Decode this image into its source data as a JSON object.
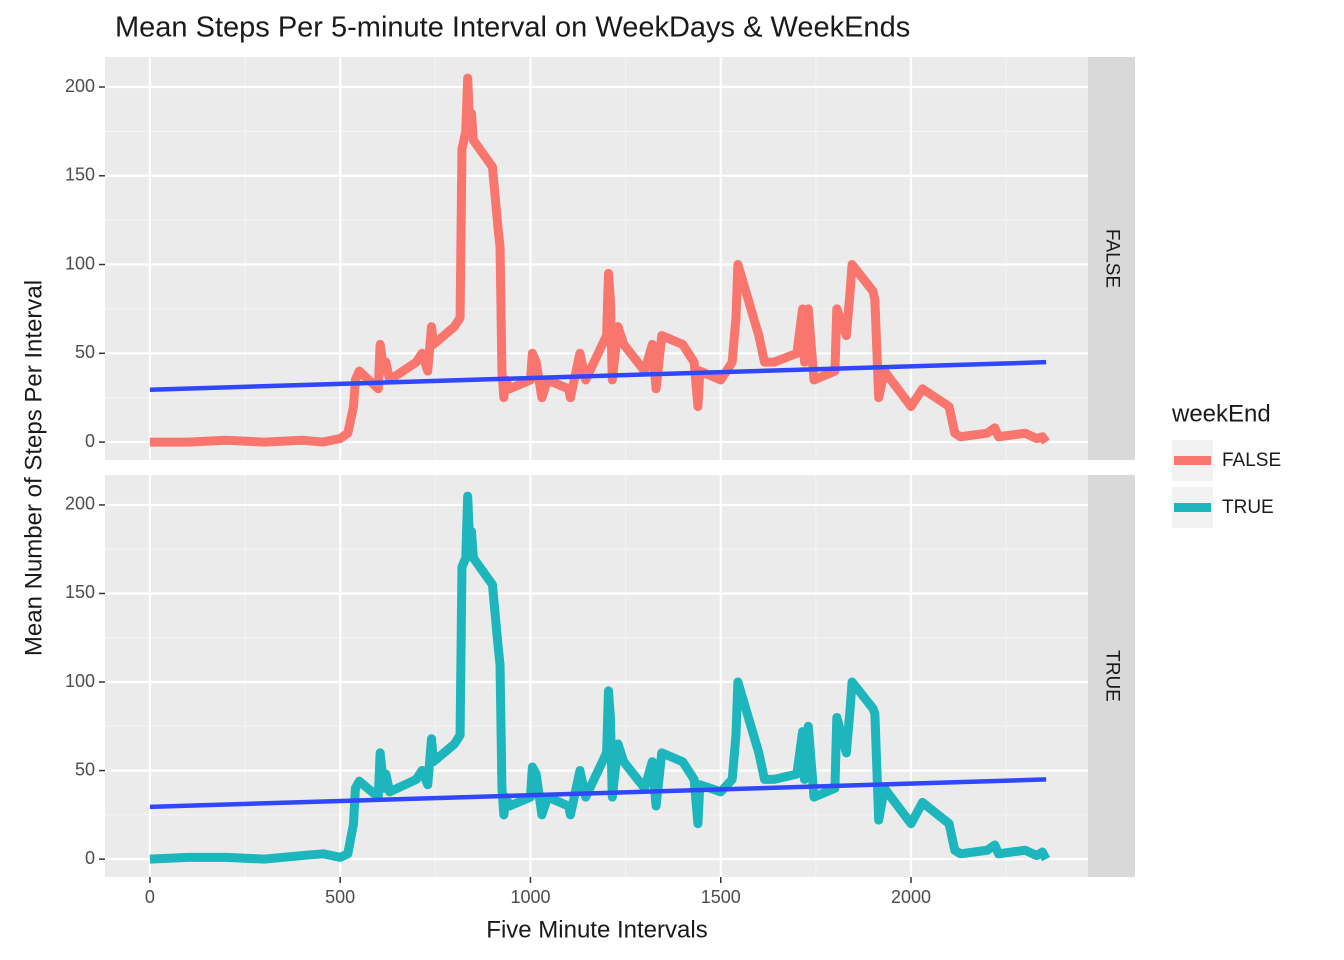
{
  "title": "Mean Steps Per 5-minute Interval on WeekDays & WeekEnds",
  "x_label": "Five Minute Intervals",
  "y_label": "Mean Number of Steps Per Interval",
  "legend_title": "weekEnd",
  "chart_data": [
    {
      "type": "line",
      "facet_label": "FALSE",
      "x": [
        0,
        100,
        200,
        300,
        400,
        455,
        500,
        520,
        535,
        540,
        550,
        600,
        605,
        615,
        620,
        630,
        700,
        715,
        730,
        740,
        745,
        800,
        815,
        820,
        830,
        835,
        840,
        845,
        850,
        900,
        915,
        920,
        925,
        930,
        935,
        945,
        1000,
        1005,
        1015,
        1030,
        1045,
        1100,
        1105,
        1130,
        1145,
        1200,
        1205,
        1210,
        1215,
        1230,
        1245,
        1300,
        1320,
        1330,
        1345,
        1400,
        1430,
        1440,
        1445,
        1500,
        1530,
        1540,
        1545,
        1600,
        1610,
        1615,
        1640,
        1700,
        1715,
        1720,
        1730,
        1745,
        1800,
        1805,
        1830,
        1840,
        1845,
        1900,
        1905,
        1915,
        1930,
        2000,
        2030,
        2100,
        2115,
        2130,
        2200,
        2220,
        2230,
        2300,
        2330,
        2345,
        2355
      ],
      "series": [
        {
          "name": "FALSE",
          "color": "#f8766d",
          "values": [
            0,
            0,
            1,
            0,
            1,
            0,
            2,
            5,
            20,
            35,
            40,
            30,
            55,
            40,
            45,
            35,
            45,
            50,
            40,
            65,
            55,
            65,
            70,
            165,
            175,
            205,
            180,
            185,
            170,
            155,
            120,
            110,
            40,
            25,
            35,
            30,
            35,
            50,
            45,
            25,
            35,
            30,
            25,
            50,
            35,
            60,
            95,
            80,
            35,
            65,
            55,
            40,
            55,
            30,
            60,
            55,
            45,
            20,
            40,
            35,
            45,
            70,
            100,
            60,
            50,
            45,
            45,
            50,
            75,
            45,
            75,
            35,
            40,
            75,
            60,
            85,
            100,
            85,
            80,
            25,
            40,
            20,
            30,
            20,
            5,
            3,
            5,
            8,
            3,
            5,
            2,
            3,
            0
          ]
        }
      ],
      "trend": {
        "color": "#3046ff",
        "x": [
          0,
          2355
        ],
        "values": [
          29.5,
          45
        ]
      },
      "xlim": [
        -118,
        2465
      ],
      "xticks": [
        0,
        500,
        1000,
        1500,
        2000
      ],
      "ylim": [
        -10.1,
        216.9
      ],
      "yticks": [
        0,
        50,
        100,
        150,
        200
      ],
      "grid": true
    },
    {
      "type": "line",
      "facet_label": "TRUE",
      "x": [
        0,
        100,
        200,
        300,
        400,
        455,
        500,
        520,
        535,
        540,
        550,
        600,
        605,
        615,
        620,
        630,
        700,
        715,
        730,
        740,
        745,
        800,
        815,
        820,
        830,
        835,
        840,
        845,
        850,
        900,
        915,
        920,
        925,
        930,
        935,
        945,
        1000,
        1005,
        1015,
        1030,
        1045,
        1100,
        1105,
        1130,
        1145,
        1200,
        1205,
        1210,
        1215,
        1230,
        1245,
        1300,
        1320,
        1330,
        1345,
        1400,
        1430,
        1440,
        1445,
        1500,
        1530,
        1540,
        1545,
        1600,
        1610,
        1615,
        1640,
        1700,
        1715,
        1720,
        1730,
        1745,
        1800,
        1805,
        1830,
        1840,
        1845,
        1900,
        1905,
        1915,
        1930,
        2000,
        2030,
        2100,
        2115,
        2130,
        2200,
        2220,
        2230,
        2300,
        2330,
        2345,
        2355
      ],
      "series": [
        {
          "name": "TRUE",
          "color": "#1cb6bc",
          "values": [
            0,
            1,
            1,
            0,
            2,
            3,
            1,
            3,
            20,
            40,
            44,
            35,
            60,
            40,
            48,
            38,
            45,
            50,
            42,
            68,
            55,
            65,
            70,
            165,
            170,
            205,
            180,
            185,
            170,
            155,
            120,
            110,
            40,
            25,
            35,
            30,
            35,
            52,
            48,
            25,
            35,
            30,
            25,
            50,
            35,
            60,
            95,
            80,
            35,
            65,
            55,
            40,
            55,
            30,
            60,
            55,
            45,
            20,
            42,
            38,
            45,
            70,
            100,
            60,
            50,
            45,
            45,
            48,
            72,
            45,
            75,
            35,
            40,
            80,
            60,
            85,
            100,
            85,
            82,
            22,
            40,
            20,
            32,
            20,
            5,
            3,
            5,
            8,
            3,
            5,
            2,
            4,
            0
          ]
        }
      ],
      "trend": {
        "color": "#3046ff",
        "x": [
          0,
          2355
        ],
        "values": [
          29.5,
          45
        ]
      },
      "xlim": [
        -118,
        2465
      ],
      "xticks": [
        0,
        500,
        1000,
        1500,
        2000
      ],
      "ylim": [
        -10.1,
        216.9
      ],
      "yticks": [
        0,
        50,
        100,
        150,
        200
      ],
      "grid": true
    }
  ]
}
